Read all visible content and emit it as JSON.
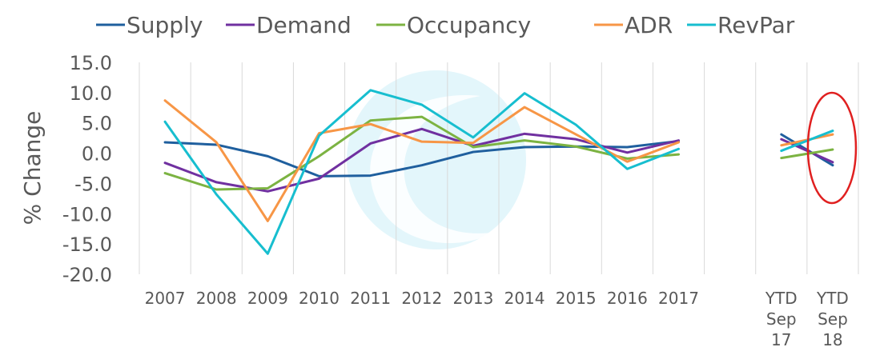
{
  "chart_data": {
    "type": "line",
    "ylabel": "% Change",
    "ylim": [
      -20,
      15
    ],
    "yticks": [
      "15.0",
      "10.0",
      "5.0",
      "0.0",
      "-5.0",
      "-10.0",
      "-15.0",
      "-20.0"
    ],
    "grid": "vertical",
    "legend_position": "top",
    "categories": [
      "2007",
      "2008",
      "2009",
      "2010",
      "2011",
      "2012",
      "2013",
      "2014",
      "2015",
      "2016",
      "2017",
      "",
      "YTD Sep 17",
      "YTD Sep 18"
    ],
    "category_lines": [
      [
        [
          "2007"
        ]
      ],
      [
        [
          "2008"
        ]
      ],
      [
        [
          "2009"
        ]
      ],
      [
        [
          "2010"
        ]
      ],
      [
        [
          "2011"
        ]
      ],
      [
        [
          "2012"
        ]
      ],
      [
        [
          "2013"
        ]
      ],
      [
        [
          "2014"
        ]
      ],
      [
        [
          "2015"
        ]
      ],
      [
        [
          "2016"
        ]
      ],
      [
        [
          "2017"
        ]
      ],
      [
        [
          ""
        ]
      ],
      [
        [
          "YTD"
        ],
        [
          "Sep"
        ],
        [
          "17"
        ]
      ],
      [
        [
          "YTD"
        ],
        [
          "Sep"
        ],
        [
          "18"
        ]
      ]
    ],
    "series": [
      {
        "name": "Supply",
        "color": "#1f5f9e",
        "values": [
          1.8,
          1.4,
          -0.5,
          -3.8,
          -3.7,
          -2.0,
          0.2,
          1.0,
          1.1,
          1.0,
          2.0,
          null,
          3.1,
          -2.0
        ]
      },
      {
        "name": "Demand",
        "color": "#7030a0",
        "values": [
          -1.6,
          -4.8,
          -6.3,
          -4.2,
          1.6,
          4.0,
          1.2,
          3.2,
          2.3,
          0.1,
          2.1,
          null,
          2.3,
          -1.5
        ]
      },
      {
        "name": "Occupancy",
        "color": "#7cb342",
        "values": [
          -3.3,
          -6.0,
          -5.8,
          -0.5,
          5.4,
          6.0,
          1.0,
          2.1,
          1.1,
          -0.9,
          -0.2,
          null,
          -0.8,
          0.6
        ]
      },
      {
        "name": "ADR",
        "color": "#f79646",
        "values": [
          8.7,
          1.8,
          -11.2,
          3.3,
          4.8,
          1.9,
          1.7,
          7.6,
          3.1,
          -1.4,
          1.8,
          null,
          1.3,
          3.1
        ]
      },
      {
        "name": "RevPar",
        "color": "#17becf",
        "values": [
          5.2,
          -6.8,
          -16.6,
          2.9,
          10.4,
          8.0,
          2.6,
          9.9,
          4.7,
          -2.6,
          0.7,
          null,
          0.4,
          3.7
        ]
      }
    ],
    "annotations": [
      {
        "shape": "ellipse",
        "color": "#e02020",
        "category": "YTD Sep 18"
      }
    ]
  }
}
